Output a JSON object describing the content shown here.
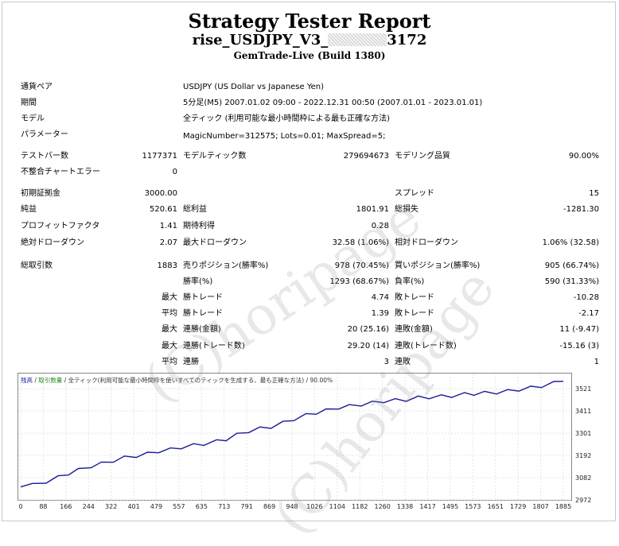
{
  "header": {
    "title": "Strategy Tester Report",
    "subtitle_prefix": "rise_USDJPY_V3_",
    "subtitle_suffix": "3172",
    "build": "GemTrade-Live (Build 1380)"
  },
  "info": [
    {
      "label": "通貨ペア",
      "value": "USDJPY (US Dollar vs Japanese Yen)"
    },
    {
      "label": "期間",
      "value": "5分足(M5) 2007.01.02 09:00 - 2022.12.31 00:50 (2007.01.01 - 2023.01.01)"
    },
    {
      "label": "モデル",
      "value": "全ティック (利用可能な最小時間枠による最も正確な方法)"
    },
    {
      "label": "パラメーター",
      "value": "MagicNumber=312575; Lots=0.01; MaxSpread=5;"
    }
  ],
  "stats": {
    "bars_label": "テストバー数",
    "bars": "1177371",
    "ticks_label": "モデルティック数",
    "ticks": "279694673",
    "quality_label": "モデリング品質",
    "quality": "90.00%",
    "errors_label": "不整合チャートエラー",
    "errors": "0",
    "deposit_label": "初期証拠金",
    "deposit": "3000.00",
    "spread_label": "スプレッド",
    "spread": "15",
    "net_label": "純益",
    "net": "520.61",
    "gross_profit_label": "総利益",
    "gross_profit": "1801.91",
    "gross_loss_label": "総損失",
    "gross_loss": "-1281.30",
    "pf_label": "プロフィットファクタ",
    "pf": "1.41",
    "payoff_label": "期待利得",
    "payoff": "0.28",
    "abs_dd_label": "絶対ドローダウン",
    "abs_dd": "2.07",
    "max_dd_label": "最大ドローダウン",
    "max_dd": "32.58 (1.06%)",
    "rel_dd_label": "相対ドローダウン",
    "rel_dd": "1.06% (32.58)",
    "trades_label": "総取引数",
    "trades": "1883",
    "short_label": "売りポジション(勝率%)",
    "short": "978 (70.45%)",
    "long_label": "買いポジション(勝率%)",
    "long": "905 (66.74%)",
    "win_label": "勝率(%)",
    "win": "1293 (68.67%)",
    "loss_label": "負率(%)",
    "loss": "590 (31.33%)",
    "max_word": "最大",
    "avg_word": "平均",
    "lwt_label": "勝トレード",
    "lwt": "4.74",
    "llt_label": "敗トレード",
    "llt": "-10.28",
    "awt_label": "勝トレード",
    "awt": "1.39",
    "alt_label": "敗トレード",
    "alt": "-2.17",
    "mcw_label": "連勝(金額)",
    "mcw": "20 (25.16)",
    "mcl_label": "連敗(金額)",
    "mcl": "11 (-9.47)",
    "mcw2_label": "連勝(トレード数)",
    "mcw2": "29.20 (14)",
    "mcl2_label": "連敗(トレード数)",
    "mcl2": "-15.16 (3)",
    "acw_label": "連勝",
    "acw": "3",
    "acl_label": "連敗",
    "acl": "1"
  },
  "watermark": "(C)horipage",
  "chart_data": {
    "type": "line",
    "legend": {
      "balance": "残高",
      "sep1": " / ",
      "volume": "取引数量",
      "sep2": " / ",
      "model": "全ティック(利用可能な最小時間枠を使いすべてのティックを生成する、最も正確な方法)",
      "sep3": " / ",
      "quality": "90.00%"
    },
    "x_ticks": [
      "0",
      "88",
      "166",
      "244",
      "322",
      "401",
      "479",
      "557",
      "635",
      "713",
      "791",
      "869",
      "948",
      "1026",
      "1104",
      "1182",
      "1260",
      "1338",
      "1417",
      "1495",
      "1573",
      "1651",
      "1729",
      "1807",
      "1885"
    ],
    "y_ticks": [
      "3521",
      "3411",
      "3301",
      "3192",
      "3082",
      "2972"
    ],
    "xlim": [
      0,
      1883
    ],
    "ylim": [
      2972,
      3521
    ],
    "series": [
      {
        "color": "#1a1a99",
        "x": [
          0,
          40,
          88,
          130,
          166,
          200,
          244,
          280,
          322,
          360,
          401,
          440,
          479,
          520,
          557,
          600,
          635,
          680,
          713,
          750,
          791,
          830,
          869,
          910,
          948,
          990,
          1026,
          1060,
          1104,
          1140,
          1182,
          1220,
          1260,
          1300,
          1338,
          1380,
          1417,
          1460,
          1495,
          1540,
          1573,
          1610,
          1651,
          1690,
          1729,
          1770,
          1807,
          1850,
          1883
        ],
        "y": [
          3025,
          3032,
          3050,
          3068,
          3088,
          3102,
          3122,
          3132,
          3148,
          3160,
          3170,
          3178,
          3192,
          3198,
          3210,
          3218,
          3226,
          3236,
          3248,
          3266,
          3286,
          3296,
          3306,
          3322,
          3342,
          3358,
          3372,
          3380,
          3396,
          3400,
          3410,
          3416,
          3426,
          3428,
          3432,
          3440,
          3444,
          3446,
          3450,
          3456,
          3460,
          3462,
          3466,
          3470,
          3480,
          3486,
          3496,
          3508,
          3518
        ]
      }
    ]
  }
}
